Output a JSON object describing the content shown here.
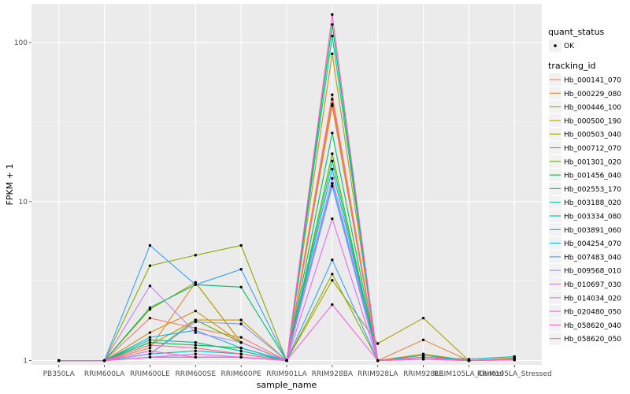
{
  "chart_data": {
    "type": "line",
    "xlabel": "sample_name",
    "ylabel": "FPKM + 1",
    "y_scale": "log",
    "ylim": [
      0.94,
      175
    ],
    "y_ticks": [
      1,
      10,
      100
    ],
    "y_tick_labels": [
      "1",
      "10",
      "100"
    ],
    "categories": [
      "PB350LA",
      "RRIM600LA",
      "RRIM600LE",
      "RRIM600SE",
      "RRIM600PE",
      "RRIM901LA",
      "RRIM928BA",
      "RRIM928LA",
      "RRIM928LE",
      "RRIM105LA_Control",
      "RRIM105LA_Stressed"
    ],
    "grid": true,
    "legend_position": "right",
    "points_legend": {
      "title": "quant_status",
      "label": "OK"
    },
    "legend_title": "tracking_id",
    "series": [
      {
        "name": "Hb_000141_070",
        "color": "#F8766D",
        "values": [
          1,
          1,
          1.85,
          1.6,
          1.4,
          1,
          41,
          1,
          1.05,
          1,
          1.02
        ]
      },
      {
        "name": "Hb_000229_080",
        "color": "#EB8335",
        "values": [
          1,
          1,
          1.2,
          3.1,
          1.3,
          1,
          47,
          1,
          1.35,
          1,
          1.02
        ]
      },
      {
        "name": "Hb_000446_100",
        "color": "#DA8E00",
        "values": [
          1,
          1,
          1.5,
          2.05,
          1.3,
          1,
          40,
          1,
          1.1,
          1,
          1.03
        ]
      },
      {
        "name": "Hb_000500_190",
        "color": "#C49A00",
        "values": [
          1,
          1,
          1.25,
          1.8,
          1.8,
          1,
          85,
          1,
          1.05,
          1,
          1.02
        ]
      },
      {
        "name": "Hb_000503_040",
        "color": "#A9A400",
        "values": [
          1,
          1,
          2.1,
          3.1,
          1.3,
          1,
          3.2,
          1.28,
          1.85,
          1,
          1.04
        ]
      },
      {
        "name": "Hb_000712_070",
        "color": "#86AC00",
        "values": [
          1,
          1,
          3.95,
          4.6,
          5.3,
          1,
          3.5,
          1,
          1.05,
          1,
          1.02
        ]
      },
      {
        "name": "Hb_001301_020",
        "color": "#53B400",
        "values": [
          1,
          1,
          1.1,
          1.8,
          1.3,
          1,
          20,
          1,
          1.02,
          1,
          1.01
        ]
      },
      {
        "name": "Hb_001456_040",
        "color": "#00BA38",
        "values": [
          1,
          1,
          1.3,
          1.25,
          1.2,
          1,
          130,
          1,
          1.05,
          1,
          1.02
        ]
      },
      {
        "name": "Hb_002553_170",
        "color": "#00BE6C",
        "values": [
          1,
          1,
          2.15,
          3.0,
          2.9,
          1,
          27,
          1,
          1.05,
          1,
          1.02
        ]
      },
      {
        "name": "Hb_003188_020",
        "color": "#00C094",
        "values": [
          1,
          1,
          1.35,
          1.3,
          1.15,
          1,
          18,
          1,
          1.08,
          1,
          1.03
        ]
      },
      {
        "name": "Hb_003334_080",
        "color": "#00C0B8",
        "values": [
          1,
          1,
          1.1,
          1.15,
          1.1,
          1,
          110,
          1,
          1.05,
          1.02,
          1.06
        ]
      },
      {
        "name": "Hb_003891_060",
        "color": "#00BDD6",
        "values": [
          1,
          1,
          1.05,
          1.05,
          1.05,
          1,
          16,
          1,
          1.05,
          1,
          1.02
        ]
      },
      {
        "name": "Hb_004254_070",
        "color": "#00B4EF",
        "values": [
          1,
          1,
          1.4,
          1.55,
          1.2,
          1,
          13,
          1,
          1.05,
          1,
          1.02
        ]
      },
      {
        "name": "Hb_007483_040",
        "color": "#35A2FF",
        "values": [
          1,
          1,
          5.3,
          3.0,
          3.75,
          1,
          4.3,
          1,
          1.05,
          1,
          1.02
        ]
      },
      {
        "name": "Hb_009568_010",
        "color": "#8B93FF",
        "values": [
          1,
          1,
          1.1,
          1.75,
          1.7,
          1,
          12.5,
          1,
          1.05,
          1,
          1.02
        ]
      },
      {
        "name": "Hb_010697_030",
        "color": "#C77CFF",
        "values": [
          1,
          1,
          2.95,
          1.5,
          1.3,
          1,
          14,
          1,
          1.05,
          1,
          1.03
        ]
      },
      {
        "name": "Hb_014034_020",
        "color": "#E76BF3",
        "values": [
          1,
          1,
          1.05,
          1.1,
          1.05,
          1,
          7.8,
          1,
          1.02,
          1,
          1.02
        ]
      },
      {
        "name": "Hb_020480_050",
        "color": "#F564E3",
        "values": [
          1,
          1,
          1.05,
          1.05,
          1.05,
          1,
          2.25,
          1,
          1.02,
          1,
          1.01
        ]
      },
      {
        "name": "Hb_058620_040",
        "color": "#FD61D1",
        "values": [
          1,
          1,
          1.15,
          1.05,
          1.05,
          1,
          150,
          1,
          1.05,
          1,
          1.02
        ]
      },
      {
        "name": "Hb_058620_050",
        "color": "#FF67A4",
        "values": [
          1,
          1,
          1.25,
          1.2,
          1.1,
          1,
          44,
          1,
          1.05,
          1,
          1.02
        ]
      }
    ]
  }
}
